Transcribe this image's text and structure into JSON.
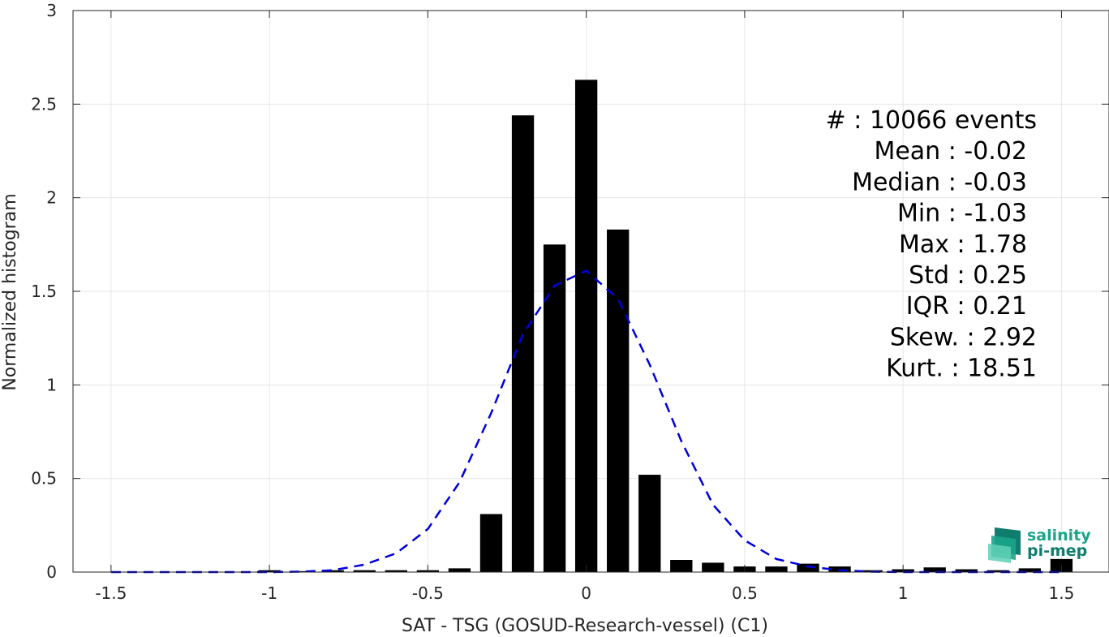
{
  "chart_data": {
    "type": "bar",
    "xlabel": "SAT - TSG (GOSUD-Research-vessel) (C1)",
    "ylabel": "Normalized histogram",
    "xlim": [
      -1.62,
      1.65
    ],
    "ylim": [
      0,
      3
    ],
    "xticks": [
      -1.5,
      -1,
      -0.5,
      0,
      0.5,
      1,
      1.5
    ],
    "xtick_labels": [
      "-1.5",
      "-1",
      "-0.5",
      "0",
      "0.5",
      "1",
      "1.5"
    ],
    "yticks": [
      0,
      0.5,
      1,
      1.5,
      2,
      2.5,
      3
    ],
    "ytick_labels": [
      "0",
      "0.5",
      "1",
      "1.5",
      "2",
      "2.5",
      "3"
    ],
    "grid": true,
    "bar_color": "#000000",
    "bar_width": 0.07,
    "bins": [
      -1.5,
      -1.4,
      -1.3,
      -1.2,
      -1.1,
      -1.0,
      -0.9,
      -0.8,
      -0.7,
      -0.6,
      -0.5,
      -0.4,
      -0.3,
      -0.2,
      -0.1,
      0.0,
      0.1,
      0.2,
      0.3,
      0.4,
      0.5,
      0.6,
      0.7,
      0.8,
      0.9,
      1.0,
      1.1,
      1.2,
      1.3,
      1.4,
      1.5
    ],
    "values": [
      0,
      0,
      0,
      0,
      0,
      0.01,
      0.005,
      0.01,
      0.01,
      0.01,
      0.01,
      0.02,
      0.31,
      2.44,
      1.75,
      2.63,
      1.83,
      0.52,
      0.065,
      0.05,
      0.03,
      0.03,
      0.045,
      0.03,
      0.01,
      0.015,
      0.025,
      0.015,
      0.01,
      0.02,
      0.07
    ],
    "gaussian_fit": {
      "color": "#0000dd",
      "style": "dashed",
      "x": [
        -1.5,
        -1.4,
        -1.3,
        -1.2,
        -1.1,
        -1.0,
        -0.9,
        -0.8,
        -0.7,
        -0.6,
        -0.5,
        -0.4,
        -0.3,
        -0.2,
        -0.1,
        0.0,
        0.1,
        0.2,
        0.3,
        0.4,
        0.5,
        0.6,
        0.7,
        0.8,
        0.9,
        1.0,
        1.1,
        1.2,
        1.3,
        1.4,
        1.5
      ],
      "y": [
        0,
        0,
        0,
        0,
        0,
        0,
        0.002,
        0.01,
        0.04,
        0.1,
        0.23,
        0.48,
        0.85,
        1.27,
        1.53,
        1.61,
        1.46,
        1.11,
        0.7,
        0.36,
        0.17,
        0.07,
        0.03,
        0.01,
        0.002,
        0,
        0,
        0,
        0,
        0,
        0
      ]
    },
    "stats": [
      "#  : 10066 events",
      "Mean : -0.02",
      "Median : -0.03",
      "Min : -1.03",
      "Max : 1.78",
      "Std : 0.25",
      "IQR : 0.21",
      "Skew. : 2.92",
      "Kurt. : 18.51"
    ]
  },
  "logo": {
    "line1": "salinity",
    "line2": "pi-mep",
    "color": "#1aa58a"
  }
}
